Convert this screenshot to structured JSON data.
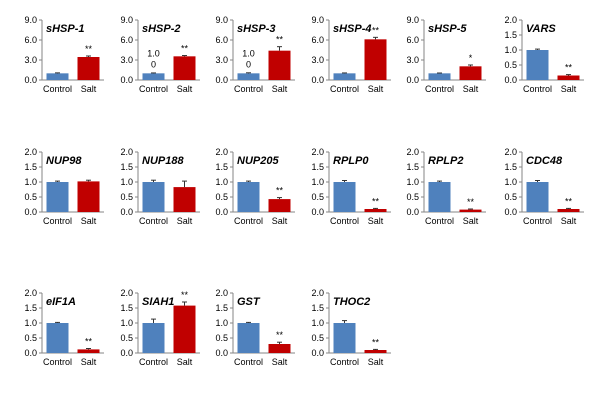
{
  "chart_data": [
    {
      "type": "bar",
      "title": "sHSP-1",
      "categories": [
        "Control",
        "Salt"
      ],
      "values": [
        1.0,
        3.45
      ],
      "errors": [
        0.07,
        0.15
      ],
      "ylim": [
        0,
        9
      ],
      "yticks": [
        "0.0",
        "3.0",
        "6.0",
        "9.0"
      ],
      "significance": [
        "",
        "**"
      ],
      "colors": [
        "#4f81bd",
        "#c00000"
      ],
      "annotations": []
    },
    {
      "type": "bar",
      "title": "sHSP-2",
      "categories": [
        "Control",
        "Salt"
      ],
      "values": [
        1.0,
        3.55
      ],
      "errors": [
        0.06,
        0.12
      ],
      "ylim": [
        0,
        9
      ],
      "yticks": [
        "0.0",
        "3.0",
        "6.0",
        "9.0"
      ],
      "significance": [
        "",
        "**"
      ],
      "colors": [
        "#4f81bd",
        "#c00000"
      ],
      "annotations": [
        "1.0",
        "0"
      ]
    },
    {
      "type": "bar",
      "title": "sHSP-3",
      "categories": [
        "Control",
        "Salt"
      ],
      "values": [
        1.0,
        4.4
      ],
      "errors": [
        0.08,
        0.6
      ],
      "ylim": [
        0,
        9
      ],
      "yticks": [
        "0.0",
        "3.0",
        "6.0",
        "9.0"
      ],
      "significance": [
        "",
        "**"
      ],
      "colors": [
        "#4f81bd",
        "#c00000"
      ],
      "annotations": [
        "1.0",
        "0"
      ]
    },
    {
      "type": "bar",
      "title": "sHSP-4",
      "categories": [
        "Control",
        "Salt"
      ],
      "values": [
        1.0,
        6.1
      ],
      "errors": [
        0.06,
        0.3
      ],
      "ylim": [
        0,
        9
      ],
      "yticks": [
        "0.0",
        "3.0",
        "6.0",
        "9.0"
      ],
      "significance": [
        "",
        "**"
      ],
      "colors": [
        "#4f81bd",
        "#c00000"
      ],
      "annotations": []
    },
    {
      "type": "bar",
      "title": "sHSP-5",
      "categories": [
        "Control",
        "Salt"
      ],
      "values": [
        1.0,
        2.05
      ],
      "errors": [
        0.05,
        0.2
      ],
      "ylim": [
        0,
        9
      ],
      "yticks": [
        "0.0",
        "3.0",
        "6.0",
        "9.0"
      ],
      "significance": [
        "",
        "*"
      ],
      "colors": [
        "#4f81bd",
        "#c00000"
      ],
      "annotations": []
    },
    {
      "type": "bar",
      "title": "VARS",
      "categories": [
        "Control",
        "Salt"
      ],
      "values": [
        1.0,
        0.15
      ],
      "errors": [
        0.03,
        0.03
      ],
      "ylim": [
        0,
        2
      ],
      "yticks": [
        "0.0",
        "0.5",
        "1.0",
        "1.5",
        "2.0"
      ],
      "significance": [
        "",
        "**"
      ],
      "colors": [
        "#4f81bd",
        "#c00000"
      ],
      "annotations": []
    },
    {
      "type": "bar",
      "title": "NUP98",
      "categories": [
        "Control",
        "Salt"
      ],
      "values": [
        1.0,
        1.02
      ],
      "errors": [
        0.03,
        0.04
      ],
      "ylim": [
        0,
        2
      ],
      "yticks": [
        "0.0",
        "0.5",
        "1.0",
        "1.5",
        "2.0"
      ],
      "significance": [
        "",
        ""
      ],
      "colors": [
        "#4f81bd",
        "#c00000"
      ],
      "annotations": []
    },
    {
      "type": "bar",
      "title": "NUP188",
      "categories": [
        "Control",
        "Salt"
      ],
      "values": [
        1.0,
        0.83
      ],
      "errors": [
        0.06,
        0.2
      ],
      "ylim": [
        0,
        2
      ],
      "yticks": [
        "0.0",
        "0.5",
        "1.0",
        "1.5",
        "2.0"
      ],
      "significance": [
        "",
        ""
      ],
      "colors": [
        "#4f81bd",
        "#c00000"
      ],
      "annotations": []
    },
    {
      "type": "bar",
      "title": "NUP205",
      "categories": [
        "Control",
        "Salt"
      ],
      "values": [
        1.0,
        0.43
      ],
      "errors": [
        0.03,
        0.05
      ],
      "ylim": [
        0,
        2
      ],
      "yticks": [
        "0.0",
        "0.5",
        "1.0",
        "1.5",
        "2.0"
      ],
      "significance": [
        "",
        "**"
      ],
      "colors": [
        "#4f81bd",
        "#c00000"
      ],
      "annotations": []
    },
    {
      "type": "bar",
      "title": "RPLP0",
      "categories": [
        "Control",
        "Salt"
      ],
      "values": [
        1.0,
        0.1
      ],
      "errors": [
        0.05,
        0.02
      ],
      "ylim": [
        0,
        2
      ],
      "yticks": [
        "0.0",
        "0.5",
        "1.0",
        "1.5",
        "2.0"
      ],
      "significance": [
        "",
        "**"
      ],
      "colors": [
        "#4f81bd",
        "#c00000"
      ],
      "annotations": []
    },
    {
      "type": "bar",
      "title": "RPLP2",
      "categories": [
        "Control",
        "Salt"
      ],
      "values": [
        1.0,
        0.08
      ],
      "errors": [
        0.03,
        0.02
      ],
      "ylim": [
        0,
        2
      ],
      "yticks": [
        "0.0",
        "0.5",
        "1.0",
        "1.5",
        "2.0"
      ],
      "significance": [
        "",
        "**"
      ],
      "colors": [
        "#4f81bd",
        "#c00000"
      ],
      "annotations": []
    },
    {
      "type": "bar",
      "title": "CDC48",
      "categories": [
        "Control",
        "Salt"
      ],
      "values": [
        1.0,
        0.1
      ],
      "errors": [
        0.05,
        0.02
      ],
      "ylim": [
        0,
        2
      ],
      "yticks": [
        "0.0",
        "0.5",
        "1.0",
        "1.5",
        "2.0"
      ],
      "significance": [
        "",
        "**"
      ],
      "colors": [
        "#4f81bd",
        "#c00000"
      ],
      "annotations": []
    },
    {
      "type": "bar",
      "title": "eIF1A",
      "categories": [
        "Control",
        "Salt"
      ],
      "values": [
        1.0,
        0.12
      ],
      "errors": [
        0.02,
        0.03
      ],
      "ylim": [
        0,
        2
      ],
      "yticks": [
        "0.0",
        "0.5",
        "1.0",
        "1.5",
        "2.0"
      ],
      "significance": [
        "",
        "**"
      ],
      "colors": [
        "#4f81bd",
        "#c00000"
      ],
      "annotations": []
    },
    {
      "type": "bar",
      "title": "SIAH1",
      "categories": [
        "Control",
        "Salt"
      ],
      "values": [
        1.0,
        1.58
      ],
      "errors": [
        0.13,
        0.12
      ],
      "ylim": [
        0,
        2
      ],
      "yticks": [
        "0.0",
        "0.5",
        "1.0",
        "1.5",
        "2.0"
      ],
      "significance": [
        "",
        "**"
      ],
      "colors": [
        "#4f81bd",
        "#c00000"
      ],
      "annotations": []
    },
    {
      "type": "bar",
      "title": "GST",
      "categories": [
        "Control",
        "Salt"
      ],
      "values": [
        1.0,
        0.3
      ],
      "errors": [
        0.02,
        0.06
      ],
      "ylim": [
        0,
        2
      ],
      "yticks": [
        "0.0",
        "0.5",
        "1.0",
        "1.5",
        "2.0"
      ],
      "significance": [
        "",
        "**"
      ],
      "colors": [
        "#4f81bd",
        "#c00000"
      ],
      "annotations": []
    },
    {
      "type": "bar",
      "title": "THOC2",
      "categories": [
        "Control",
        "Salt"
      ],
      "values": [
        1.0,
        0.1
      ],
      "errors": [
        0.08,
        0.02
      ],
      "ylim": [
        0,
        2
      ],
      "yticks": [
        "0.0",
        "0.5",
        "1.0",
        "1.5",
        "2.0"
      ],
      "significance": [
        "",
        "**"
      ],
      "colors": [
        "#4f81bd",
        "#c00000"
      ],
      "annotations": []
    }
  ]
}
